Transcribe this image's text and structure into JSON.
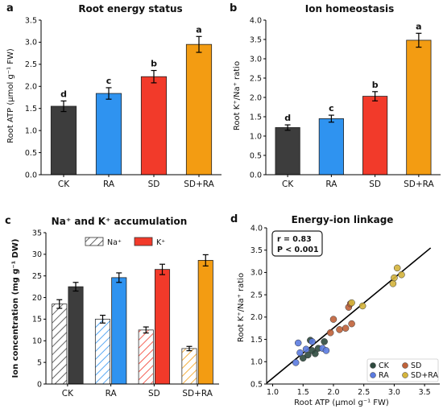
{
  "chart_data": [
    {
      "type": "bar",
      "panel_label": "a",
      "title": "Root energy status",
      "ylabel": "Root ATP (μmol g⁻¹ FW)",
      "categories": [
        "CK",
        "RA",
        "SD",
        "SD+RA"
      ],
      "values": [
        1.55,
        1.84,
        2.22,
        2.95
      ],
      "errors": [
        0.12,
        0.13,
        0.14,
        0.18
      ],
      "letters": [
        "d",
        "c",
        "b",
        "a"
      ],
      "colors": [
        "#3d3d3d",
        "#2f93f0",
        "#f23a2a",
        "#f39c12"
      ],
      "ylim": [
        0,
        3.5
      ],
      "yticks": [
        "0.0",
        "0.5",
        "1.0",
        "1.5",
        "2.0",
        "2.5",
        "3.0",
        "3.5"
      ]
    },
    {
      "type": "bar",
      "panel_label": "b",
      "title": "Ion homeostasis",
      "ylabel": "Root K⁺/Na⁺ ratio",
      "categories": [
        "CK",
        "RA",
        "SD",
        "SD+RA"
      ],
      "values": [
        1.22,
        1.45,
        2.03,
        3.48
      ],
      "errors": [
        0.07,
        0.09,
        0.12,
        0.18
      ],
      "letters": [
        "d",
        "c",
        "b",
        "a"
      ],
      "colors": [
        "#3d3d3d",
        "#2f93f0",
        "#f23a2a",
        "#f39c12"
      ],
      "ylim": [
        0,
        4.0
      ],
      "yticks": [
        "0.0",
        "0.5",
        "1.0",
        "1.5",
        "2.0",
        "2.5",
        "3.0",
        "3.5",
        "4.0"
      ]
    },
    {
      "type": "bar",
      "panel_label": "c",
      "title": "Na⁺ and K⁺ accumulation",
      "ylabel": "Ion concentration (mg g⁻¹ DW)",
      "categories": [
        "CK",
        "RA",
        "SD",
        "SD+RA"
      ],
      "series": [
        {
          "name": "Na⁺",
          "values": [
            18.5,
            15.0,
            12.5,
            8.2
          ],
          "errors": [
            1.0,
            0.9,
            0.7,
            0.5
          ]
        },
        {
          "name": "K⁺",
          "values": [
            22.5,
            24.6,
            26.5,
            28.6
          ],
          "errors": [
            1.0,
            1.1,
            1.2,
            1.3
          ]
        }
      ],
      "colors": [
        "#3d3d3d",
        "#2f93f0",
        "#f23a2a",
        "#f39c12"
      ],
      "ylim": [
        0,
        35
      ],
      "yticks": [
        "0",
        "5",
        "10",
        "15",
        "20",
        "25",
        "30",
        "35"
      ],
      "legend_position": "top-center"
    },
    {
      "type": "scatter",
      "panel_label": "d",
      "title": "Energy-ion linkage",
      "xlabel": "Root ATP (μmol g⁻¹ FW)",
      "ylabel": "Root K⁺/Na⁺ ratio",
      "xlim": [
        0.9,
        3.75
      ],
      "ylim": [
        0.5,
        4.0
      ],
      "xticks": [
        "1.0",
        "1.5",
        "2.0",
        "2.5",
        "3.0",
        "3.5"
      ],
      "yticks": [
        "0.5",
        "1.0",
        "1.5",
        "2.0",
        "2.5",
        "3.0",
        "3.5",
        "4.0"
      ],
      "annotation": [
        "r = 0.83",
        "P < 0.001"
      ],
      "fit_line": {
        "x": [
          0.9,
          3.6
        ],
        "y": [
          0.52,
          3.55
        ]
      },
      "series": [
        {
          "name": "CK",
          "color": "#2e4a3e",
          "x": [
            1.5,
            1.58,
            1.65,
            1.7,
            1.75,
            1.85,
            1.62
          ],
          "y": [
            1.08,
            1.15,
            1.25,
            1.18,
            1.3,
            1.45,
            1.48
          ]
        },
        {
          "name": "RA",
          "color": "#5b7be0",
          "x": [
            1.38,
            1.42,
            1.55,
            1.82,
            1.88,
            1.65,
            1.45
          ],
          "y": [
            0.98,
            1.42,
            1.28,
            1.3,
            1.25,
            1.45,
            1.2
          ]
        },
        {
          "name": "SD",
          "color": "#c0623a",
          "x": [
            1.95,
            2.0,
            2.1,
            2.2,
            2.25,
            2.3,
            2.28
          ],
          "y": [
            1.65,
            1.95,
            1.72,
            1.75,
            2.22,
            1.85,
            2.3
          ]
        },
        {
          "name": "SD+RA",
          "color": "#d4b43c",
          "x": [
            2.48,
            2.98,
            3.05,
            3.0,
            3.12,
            2.3
          ],
          "y": [
            2.25,
            2.75,
            3.1,
            2.88,
            2.95,
            2.32
          ]
        }
      ],
      "legend_position": "bottom-right"
    }
  ]
}
